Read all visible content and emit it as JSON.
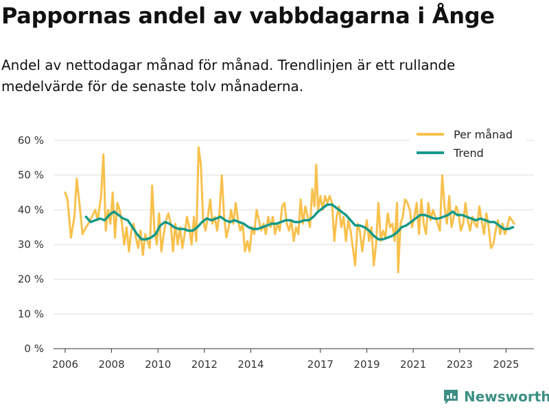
{
  "chart_data": {
    "type": "line",
    "title": "Pappornas andel av vabbdagarna i Ånge",
    "subtitle": "Andel av nettodagar månad för månad. Trendlinjen är ett rullande medelvärde för de senaste tolv månaderna.",
    "xlabel": "",
    "ylabel": "",
    "xlim": [
      2005.5,
      2026.2
    ],
    "ylim": [
      0,
      60
    ],
    "x_ticks": [
      2006,
      2008,
      2010,
      2012,
      2014,
      2017,
      2019,
      2021,
      2023,
      2025
    ],
    "y_ticks": [
      {
        "value": 0,
        "label": "0 %"
      },
      {
        "value": 10,
        "label": "10 %"
      },
      {
        "value": 20,
        "label": "20 %"
      },
      {
        "value": 30,
        "label": "30 %"
      },
      {
        "value": 40,
        "label": "40 %"
      },
      {
        "value": 50,
        "label": "50 %"
      },
      {
        "value": 60,
        "label": "60 %"
      }
    ],
    "legend": {
      "position": "top-right"
    },
    "series": [
      {
        "name": "Per månad",
        "color": "#f8c04c",
        "points": [
          [
            2006.0,
            45
          ],
          [
            2006.1,
            43
          ],
          [
            2006.25,
            32
          ],
          [
            2006.4,
            38
          ],
          [
            2006.5,
            49
          ],
          [
            2006.6,
            43
          ],
          [
            2006.75,
            33
          ],
          [
            2006.9,
            35
          ],
          [
            2007.0,
            36
          ],
          [
            2007.15,
            38
          ],
          [
            2007.3,
            40
          ],
          [
            2007.4,
            37
          ],
          [
            2007.55,
            44
          ],
          [
            2007.65,
            56
          ],
          [
            2007.75,
            34
          ],
          [
            2007.85,
            40
          ],
          [
            2007.95,
            36
          ],
          [
            2008.05,
            45
          ],
          [
            2008.15,
            32
          ],
          [
            2008.25,
            42
          ],
          [
            2008.35,
            40
          ],
          [
            2008.45,
            36
          ],
          [
            2008.55,
            30
          ],
          [
            2008.65,
            35
          ],
          [
            2008.75,
            28
          ],
          [
            2008.85,
            34
          ],
          [
            2008.95,
            36
          ],
          [
            2009.05,
            32
          ],
          [
            2009.15,
            29
          ],
          [
            2009.25,
            34
          ],
          [
            2009.35,
            27
          ],
          [
            2009.45,
            33
          ],
          [
            2009.55,
            31
          ],
          [
            2009.65,
            29
          ],
          [
            2009.75,
            47
          ],
          [
            2009.85,
            34
          ],
          [
            2009.95,
            30
          ],
          [
            2010.05,
            39
          ],
          [
            2010.15,
            28
          ],
          [
            2010.25,
            33
          ],
          [
            2010.35,
            37
          ],
          [
            2010.45,
            39
          ],
          [
            2010.55,
            36
          ],
          [
            2010.65,
            28
          ],
          [
            2010.75,
            36
          ],
          [
            2010.85,
            30
          ],
          [
            2010.95,
            35
          ],
          [
            2011.05,
            29
          ],
          [
            2011.15,
            33
          ],
          [
            2011.25,
            38
          ],
          [
            2011.35,
            35
          ],
          [
            2011.45,
            30
          ],
          [
            2011.55,
            38
          ],
          [
            2011.65,
            31
          ],
          [
            2011.75,
            58
          ],
          [
            2011.85,
            53
          ],
          [
            2011.95,
            37
          ],
          [
            2012.05,
            34
          ],
          [
            2012.15,
            38
          ],
          [
            2012.25,
            43
          ],
          [
            2012.35,
            36
          ],
          [
            2012.45,
            38
          ],
          [
            2012.55,
            34
          ],
          [
            2012.65,
            39
          ],
          [
            2012.75,
            50
          ],
          [
            2012.85,
            38
          ],
          [
            2012.95,
            32
          ],
          [
            2013.05,
            35
          ],
          [
            2013.15,
            40
          ],
          [
            2013.25,
            36
          ],
          [
            2013.35,
            42
          ],
          [
            2013.45,
            37
          ],
          [
            2013.55,
            34
          ],
          [
            2013.65,
            36
          ],
          [
            2013.75,
            28
          ],
          [
            2013.85,
            31
          ],
          [
            2013.95,
            28
          ],
          [
            2014.05,
            35
          ],
          [
            2014.15,
            33
          ],
          [
            2014.25,
            40
          ],
          [
            2014.35,
            37
          ],
          [
            2014.45,
            34
          ],
          [
            2014.55,
            36
          ],
          [
            2014.65,
            33
          ],
          [
            2014.75,
            38
          ],
          [
            2014.85,
            35
          ],
          [
            2014.95,
            38
          ],
          [
            2015.05,
            33
          ],
          [
            2015.15,
            36
          ],
          [
            2015.25,
            34
          ],
          [
            2015.35,
            41
          ],
          [
            2015.45,
            42
          ],
          [
            2015.55,
            36
          ],
          [
            2015.65,
            34
          ],
          [
            2015.75,
            37
          ],
          [
            2015.85,
            31
          ],
          [
            2015.95,
            35
          ],
          [
            2016.05,
            33
          ],
          [
            2016.15,
            43
          ],
          [
            2016.25,
            36
          ],
          [
            2016.35,
            41
          ],
          [
            2016.45,
            38
          ],
          [
            2016.55,
            35
          ],
          [
            2016.65,
            46
          ],
          [
            2016.75,
            41
          ],
          [
            2016.82,
            53
          ],
          [
            2016.9,
            40
          ],
          [
            2017.0,
            44
          ],
          [
            2017.1,
            40
          ],
          [
            2017.2,
            44
          ],
          [
            2017.3,
            42
          ],
          [
            2017.4,
            44
          ],
          [
            2017.5,
            42
          ],
          [
            2017.6,
            31
          ],
          [
            2017.7,
            38
          ],
          [
            2017.8,
            41
          ],
          [
            2017.9,
            35
          ],
          [
            2018.0,
            38
          ],
          [
            2018.1,
            31
          ],
          [
            2018.2,
            37
          ],
          [
            2018.3,
            34
          ],
          [
            2018.4,
            29
          ],
          [
            2018.5,
            24
          ],
          [
            2018.6,
            36
          ],
          [
            2018.7,
            34
          ],
          [
            2018.8,
            28
          ],
          [
            2018.9,
            33
          ],
          [
            2019.0,
            37
          ],
          [
            2019.1,
            31
          ],
          [
            2019.2,
            35
          ],
          [
            2019.3,
            24
          ],
          [
            2019.4,
            30
          ],
          [
            2019.5,
            42
          ],
          [
            2019.6,
            31
          ],
          [
            2019.7,
            34
          ],
          [
            2019.8,
            32
          ],
          [
            2019.9,
            39
          ],
          [
            2020.0,
            35
          ],
          [
            2020.1,
            36
          ],
          [
            2020.2,
            31
          ],
          [
            2020.3,
            42
          ],
          [
            2020.35,
            22
          ],
          [
            2020.45,
            36
          ],
          [
            2020.55,
            38
          ],
          [
            2020.65,
            43
          ],
          [
            2020.75,
            42
          ],
          [
            2020.85,
            40
          ],
          [
            2020.95,
            35
          ],
          [
            2021.05,
            38
          ],
          [
            2021.15,
            42
          ],
          [
            2021.25,
            33
          ],
          [
            2021.35,
            43
          ],
          [
            2021.45,
            36
          ],
          [
            2021.55,
            33
          ],
          [
            2021.65,
            42
          ],
          [
            2021.75,
            37
          ],
          [
            2021.85,
            40
          ],
          [
            2021.95,
            38
          ],
          [
            2022.05,
            36
          ],
          [
            2022.15,
            34
          ],
          [
            2022.25,
            50
          ],
          [
            2022.35,
            41
          ],
          [
            2022.45,
            36
          ],
          [
            2022.55,
            44
          ],
          [
            2022.65,
            35
          ],
          [
            2022.75,
            38
          ],
          [
            2022.85,
            41
          ],
          [
            2022.95,
            39
          ],
          [
            2023.05,
            34
          ],
          [
            2023.15,
            36
          ],
          [
            2023.25,
            42
          ],
          [
            2023.35,
            37
          ],
          [
            2023.45,
            34
          ],
          [
            2023.55,
            38
          ],
          [
            2023.65,
            36
          ],
          [
            2023.75,
            35
          ],
          [
            2023.85,
            41
          ],
          [
            2023.95,
            37
          ],
          [
            2024.05,
            33
          ],
          [
            2024.15,
            39
          ],
          [
            2024.25,
            35
          ],
          [
            2024.35,
            29
          ],
          [
            2024.45,
            30
          ],
          [
            2024.55,
            34
          ],
          [
            2024.65,
            37
          ],
          [
            2024.75,
            33
          ],
          [
            2024.85,
            36
          ],
          [
            2024.95,
            33
          ],
          [
            2025.05,
            35
          ],
          [
            2025.15,
            38
          ],
          [
            2025.25,
            37
          ],
          [
            2025.35,
            36
          ]
        ]
      },
      {
        "name": "Trend",
        "color": "#12998a",
        "points": [
          [
            2006.9,
            38
          ],
          [
            2007.1,
            36.5
          ],
          [
            2007.3,
            37
          ],
          [
            2007.5,
            37.5
          ],
          [
            2007.7,
            37
          ],
          [
            2007.9,
            38.5
          ],
          [
            2008.1,
            39.5
          ],
          [
            2008.3,
            38.5
          ],
          [
            2008.5,
            37.5
          ],
          [
            2008.7,
            37
          ],
          [
            2008.9,
            35
          ],
          [
            2009.1,
            33
          ],
          [
            2009.3,
            31.5
          ],
          [
            2009.5,
            31.5
          ],
          [
            2009.7,
            32
          ],
          [
            2009.9,
            33
          ],
          [
            2010.1,
            35.5
          ],
          [
            2010.3,
            36.5
          ],
          [
            2010.5,
            36
          ],
          [
            2010.7,
            35
          ],
          [
            2010.9,
            34.5
          ],
          [
            2011.1,
            34.5
          ],
          [
            2011.3,
            34
          ],
          [
            2011.5,
            34
          ],
          [
            2011.7,
            35
          ],
          [
            2011.9,
            36.5
          ],
          [
            2012.1,
            37.5
          ],
          [
            2012.3,
            37
          ],
          [
            2012.5,
            37.5
          ],
          [
            2012.7,
            38
          ],
          [
            2012.9,
            37
          ],
          [
            2013.1,
            36.5
          ],
          [
            2013.3,
            37
          ],
          [
            2013.5,
            36.5
          ],
          [
            2013.7,
            36
          ],
          [
            2013.9,
            35
          ],
          [
            2014.1,
            34.5
          ],
          [
            2014.3,
            34.5
          ],
          [
            2014.5,
            35
          ],
          [
            2014.7,
            35.5
          ],
          [
            2014.9,
            36
          ],
          [
            2015.1,
            36
          ],
          [
            2015.3,
            36.5
          ],
          [
            2015.5,
            37
          ],
          [
            2015.7,
            37
          ],
          [
            2015.9,
            36.5
          ],
          [
            2016.1,
            36.5
          ],
          [
            2016.3,
            37
          ],
          [
            2016.5,
            37
          ],
          [
            2016.7,
            38
          ],
          [
            2016.9,
            39.5
          ],
          [
            2017.1,
            40.5
          ],
          [
            2017.3,
            41.5
          ],
          [
            2017.5,
            41.5
          ],
          [
            2017.7,
            40.5
          ],
          [
            2017.9,
            39.5
          ],
          [
            2018.1,
            38.5
          ],
          [
            2018.3,
            37
          ],
          [
            2018.5,
            35.5
          ],
          [
            2018.7,
            35.5
          ],
          [
            2018.9,
            35
          ],
          [
            2019.1,
            34
          ],
          [
            2019.3,
            32.5
          ],
          [
            2019.5,
            31.5
          ],
          [
            2019.7,
            31.5
          ],
          [
            2019.9,
            32
          ],
          [
            2020.1,
            32.5
          ],
          [
            2020.3,
            33.5
          ],
          [
            2020.5,
            35
          ],
          [
            2020.7,
            35.5
          ],
          [
            2020.9,
            36.5
          ],
          [
            2021.1,
            37.5
          ],
          [
            2021.3,
            38.5
          ],
          [
            2021.5,
            38.5
          ],
          [
            2021.7,
            38
          ],
          [
            2021.9,
            37.5
          ],
          [
            2022.1,
            37.5
          ],
          [
            2022.3,
            38
          ],
          [
            2022.5,
            38.5
          ],
          [
            2022.7,
            39.5
          ],
          [
            2022.9,
            38.5
          ],
          [
            2023.1,
            38.5
          ],
          [
            2023.3,
            38
          ],
          [
            2023.5,
            37.5
          ],
          [
            2023.7,
            37
          ],
          [
            2023.9,
            37.5
          ],
          [
            2024.1,
            37
          ],
          [
            2024.3,
            36.5
          ],
          [
            2024.5,
            36.5
          ],
          [
            2024.7,
            35.5
          ],
          [
            2024.9,
            34.5
          ],
          [
            2025.1,
            34.5
          ],
          [
            2025.3,
            35
          ]
        ]
      }
    ]
  },
  "footer": {
    "brand_name": "Newsworthy",
    "brand_color": "#3d8f84"
  }
}
